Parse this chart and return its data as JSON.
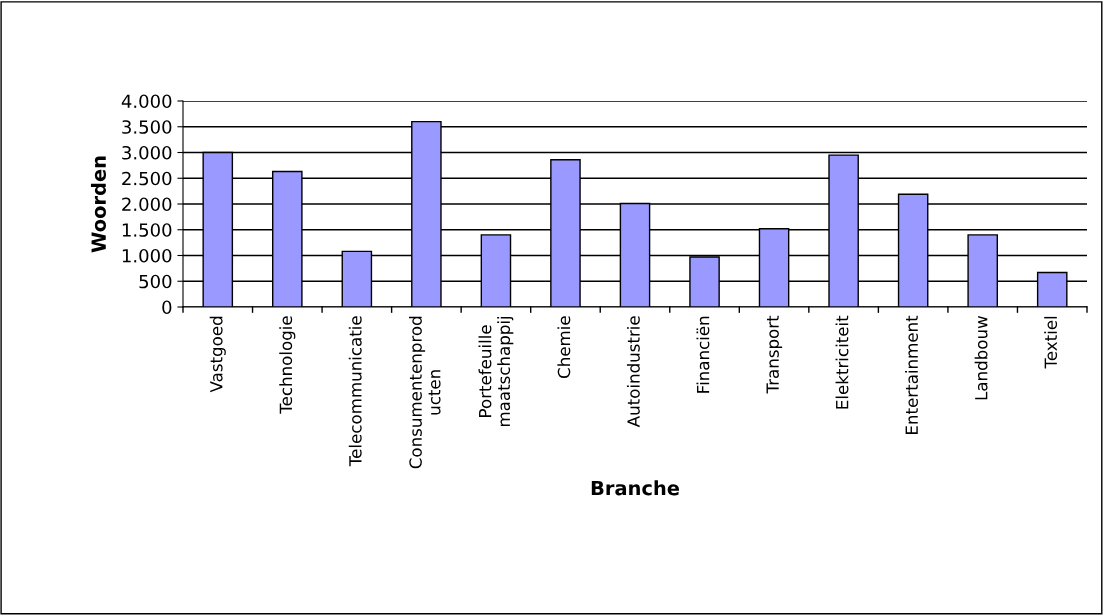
{
  "chart_data": {
    "type": "bar",
    "xlabel": "Branche",
    "ylabel": "Woorden",
    "categories": [
      "Vastgoed",
      "Technologie",
      "Telecommunicatie",
      "Consumentenprod\nucten",
      "Portefeuille\nmaatschappij",
      "Chemie",
      "Autoindustrie",
      "Financiën",
      "Transport",
      "Elektriciteit",
      "Entertainment",
      "Landbouw",
      "Textiel"
    ],
    "values": [
      3000,
      2630,
      1080,
      3600,
      1400,
      2860,
      2010,
      970,
      1520,
      2950,
      2190,
      1400,
      670
    ],
    "color": "#9999ff",
    "ylim": [
      0,
      4000
    ],
    "yticks": [
      0,
      {
        "value": 500,
        "label": "500"
      },
      {
        "value": 1000,
        "label": "1.000"
      },
      {
        "value": 1500,
        "label": "1.500"
      },
      {
        "value": 2000,
        "label": "2.000"
      },
      {
        "value": 2500,
        "label": "2.500"
      },
      {
        "value": 3000,
        "label": "3.000"
      },
      {
        "value": 3500,
        "label": "3.500"
      },
      {
        "value": 4000,
        "label": "4.000"
      }
    ],
    "grid": "y",
    "legend": false
  }
}
